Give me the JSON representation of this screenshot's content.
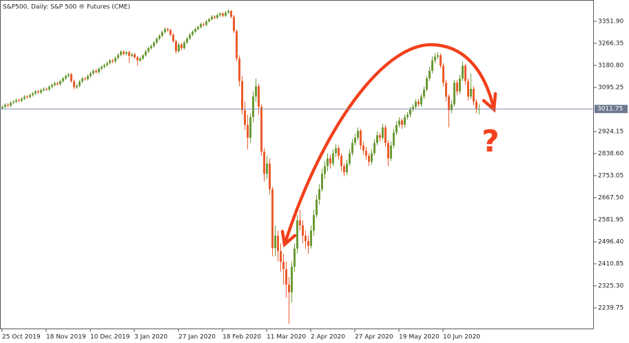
{
  "chart_data": {
    "type": "candlestick",
    "title": "S&P500, Daily:  S&P 500 ® Futures (CME)",
    "annotation": "?",
    "up_color": "#6a9a34",
    "down_color": "#ec5a2a",
    "ylim": [
      2156.9,
      3434.8
    ],
    "yticks": [
      {
        "value": 3351.9,
        "label": "3351.90"
      },
      {
        "value": 3266.35,
        "label": "3266.35"
      },
      {
        "value": 3180.8,
        "label": "3180.80"
      },
      {
        "value": 3095.25,
        "label": "3095.25"
      },
      {
        "value": 2924.15,
        "label": "2924.15"
      },
      {
        "value": 2838.6,
        "label": "2838.60"
      },
      {
        "value": 2753.05,
        "label": "2753.05"
      },
      {
        "value": 2667.5,
        "label": "2667.50"
      },
      {
        "value": 2581.95,
        "label": "2581.95"
      },
      {
        "value": 2496.4,
        "label": "2496.40"
      },
      {
        "value": 2410.85,
        "label": "2410.85"
      },
      {
        "value": 2325.3,
        "label": "2325.30"
      },
      {
        "value": 2239.75,
        "label": "2239.75"
      }
    ],
    "last_price": 3011.75,
    "categories": [
      "25 Oct 2019",
      null,
      null,
      null,
      null,
      null,
      null,
      null,
      null,
      null,
      null,
      null,
      null,
      null,
      null,
      null,
      "18 Nov 2019",
      null,
      null,
      null,
      null,
      null,
      null,
      null,
      null,
      null,
      null,
      null,
      null,
      null,
      null,
      null,
      "10 Dec 2019",
      null,
      null,
      null,
      null,
      null,
      null,
      null,
      null,
      null,
      null,
      null,
      null,
      null,
      null,
      null,
      "3 Jan 2020",
      null,
      null,
      null,
      null,
      null,
      null,
      null,
      null,
      null,
      null,
      null,
      null,
      null,
      null,
      null,
      "27 Jan 2020",
      null,
      null,
      null,
      null,
      null,
      null,
      null,
      null,
      null,
      null,
      null,
      null,
      null,
      null,
      null,
      "18 Feb 2020",
      null,
      null,
      null,
      null,
      null,
      null,
      null,
      null,
      null,
      null,
      null,
      null,
      null,
      null,
      null,
      "11 Mar 2020",
      null,
      null,
      null,
      null,
      null,
      null,
      null,
      null,
      null,
      null,
      null,
      null,
      null,
      null,
      null,
      "2 Apr 2020",
      null,
      null,
      null,
      null,
      null,
      null,
      null,
      null,
      null,
      null,
      null,
      null,
      null,
      null,
      null,
      "27 Apr 2020",
      null,
      null,
      null,
      null,
      null,
      null,
      null,
      null,
      null,
      null,
      null,
      null,
      null,
      null,
      null,
      "19 May 2020",
      null,
      null,
      null,
      null,
      null,
      null,
      null,
      null,
      null,
      null,
      null,
      null,
      null,
      null,
      null,
      "10 Jun 2020",
      null,
      null,
      null,
      null,
      null,
      null,
      null,
      null,
      null,
      null,
      null,
      null,
      null
    ],
    "ohlc": [
      [
        3015,
        3026,
        3009,
        3020
      ],
      [
        3020,
        3034,
        3014,
        3028
      ],
      [
        3028,
        3034,
        3019,
        3025
      ],
      [
        3025,
        3042,
        3019,
        3036
      ],
      [
        3036,
        3046,
        3030,
        3040
      ],
      [
        3040,
        3052,
        3034,
        3046
      ],
      [
        3046,
        3052,
        3038,
        3044
      ],
      [
        3044,
        3058,
        3038,
        3052
      ],
      [
        3052,
        3066,
        3046,
        3060
      ],
      [
        3060,
        3066,
        3052,
        3058
      ],
      [
        3058,
        3072,
        3052,
        3066
      ],
      [
        3066,
        3078,
        3060,
        3072
      ],
      [
        3072,
        3086,
        3066,
        3080
      ],
      [
        3080,
        3086,
        3070,
        3076
      ],
      [
        3076,
        3091,
        3070,
        3085
      ],
      [
        3085,
        3096,
        3079,
        3090
      ],
      [
        3090,
        3096,
        3082,
        3088
      ],
      [
        3088,
        3104,
        3082,
        3098
      ],
      [
        3098,
        3111,
        3092,
        3105
      ],
      [
        3105,
        3118,
        3099,
        3112
      ],
      [
        3112,
        3118,
        3102,
        3108
      ],
      [
        3108,
        3126,
        3102,
        3120
      ],
      [
        3120,
        3136,
        3114,
        3130
      ],
      [
        3130,
        3146,
        3124,
        3140
      ],
      [
        3140,
        3152,
        3134,
        3146
      ],
      [
        3146,
        3152,
        3114,
        3120
      ],
      [
        3120,
        3126,
        3088,
        3096
      ],
      [
        3096,
        3110,
        3090,
        3102
      ],
      [
        3102,
        3124,
        3096,
        3118
      ],
      [
        3118,
        3136,
        3112,
        3130
      ],
      [
        3130,
        3136,
        3122,
        3128
      ],
      [
        3128,
        3146,
        3122,
        3140
      ],
      [
        3140,
        3156,
        3134,
        3150
      ],
      [
        3150,
        3166,
        3144,
        3160
      ],
      [
        3160,
        3166,
        3149,
        3155
      ],
      [
        3155,
        3174,
        3149,
        3168
      ],
      [
        3168,
        3181,
        3162,
        3175
      ],
      [
        3175,
        3188,
        3169,
        3182
      ],
      [
        3182,
        3196,
        3176,
        3190
      ],
      [
        3190,
        3206,
        3184,
        3200
      ],
      [
        3200,
        3206,
        3190,
        3196
      ],
      [
        3196,
        3216,
        3190,
        3210
      ],
      [
        3210,
        3228,
        3204,
        3222
      ],
      [
        3222,
        3240,
        3216,
        3234
      ],
      [
        3234,
        3240,
        3220,
        3226
      ],
      [
        3226,
        3238,
        3220,
        3232
      ],
      [
        3232,
        3238,
        3190,
        3218
      ],
      [
        3218,
        3230,
        3212,
        3224
      ],
      [
        3224,
        3230,
        3206,
        3212
      ],
      [
        3212,
        3218,
        3180,
        3200
      ],
      [
        3200,
        3214,
        3194,
        3208
      ],
      [
        3208,
        3226,
        3202,
        3220
      ],
      [
        3220,
        3241,
        3214,
        3235
      ],
      [
        3235,
        3254,
        3229,
        3248
      ],
      [
        3248,
        3262,
        3242,
        3256
      ],
      [
        3256,
        3276,
        3250,
        3270
      ],
      [
        3270,
        3290,
        3264,
        3284
      ],
      [
        3284,
        3302,
        3278,
        3296
      ],
      [
        3296,
        3316,
        3290,
        3310
      ],
      [
        3310,
        3328,
        3304,
        3322
      ],
      [
        3322,
        3328,
        3312,
        3318
      ],
      [
        3318,
        3324,
        3294,
        3300
      ],
      [
        3300,
        3306,
        3269,
        3275
      ],
      [
        3275,
        3281,
        3226,
        3236
      ],
      [
        3236,
        3268,
        3230,
        3262
      ],
      [
        3262,
        3268,
        3240,
        3248
      ],
      [
        3248,
        3276,
        3242,
        3270
      ],
      [
        3270,
        3291,
        3264,
        3285
      ],
      [
        3285,
        3306,
        3279,
        3300
      ],
      [
        3300,
        3318,
        3294,
        3312
      ],
      [
        3312,
        3328,
        3306,
        3322
      ],
      [
        3322,
        3336,
        3316,
        3330
      ],
      [
        3330,
        3347,
        3324,
        3341
      ],
      [
        3341,
        3347,
        3332,
        3338
      ],
      [
        3338,
        3358,
        3332,
        3352
      ],
      [
        3352,
        3366,
        3346,
        3360
      ],
      [
        3360,
        3376,
        3354,
        3370
      ],
      [
        3370,
        3376,
        3360,
        3366
      ],
      [
        3366,
        3382,
        3360,
        3376
      ],
      [
        3376,
        3388,
        3370,
        3382
      ],
      [
        3382,
        3388,
        3368,
        3374
      ],
      [
        3374,
        3392,
        3368,
        3386
      ],
      [
        3386,
        3398,
        3380,
        3392
      ],
      [
        3392,
        3396,
        3364,
        3370
      ],
      [
        3370,
        3376,
        3306,
        3314
      ],
      [
        3314,
        3320,
        3196,
        3208
      ],
      [
        3208,
        3220,
        3100,
        3120
      ],
      [
        3120,
        3140,
        2990,
        3007
      ],
      [
        3007,
        3040,
        2930,
        2950
      ],
      [
        2950,
        2990,
        2855,
        2900
      ],
      [
        2900,
        2995,
        2880,
        2980
      ],
      [
        2980,
        3080,
        2960,
        3060
      ],
      [
        3060,
        3130,
        3040,
        3100
      ],
      [
        3100,
        3110,
        2990,
        3020
      ],
      [
        3020,
        3030,
        2830,
        2846
      ],
      [
        2846,
        2860,
        2730,
        2760
      ],
      [
        2760,
        2830,
        2740,
        2800
      ],
      [
        2800,
        2820,
        2680,
        2700
      ],
      [
        2700,
        2710,
        2440,
        2472
      ],
      [
        2472,
        2560,
        2440,
        2520
      ],
      [
        2520,
        2540,
        2420,
        2460
      ],
      [
        2460,
        2490,
        2380,
        2419
      ],
      [
        2419,
        2450,
        2330,
        2390
      ],
      [
        2390,
        2420,
        2280,
        2330
      ],
      [
        2330,
        2360,
        2178,
        2300
      ],
      [
        2300,
        2420,
        2260,
        2400
      ],
      [
        2400,
        2490,
        2380,
        2470
      ],
      [
        2470,
        2600,
        2450,
        2579
      ],
      [
        2579,
        2620,
        2540,
        2560
      ],
      [
        2560,
        2580,
        2490,
        2520
      ],
      [
        2520,
        2540,
        2470,
        2499
      ],
      [
        2499,
        2520,
        2450,
        2480
      ],
      [
        2480,
        2560,
        2470,
        2540
      ],
      [
        2540,
        2620,
        2520,
        2600
      ],
      [
        2600,
        2680,
        2590,
        2660
      ],
      [
        2660,
        2720,
        2640,
        2700
      ],
      [
        2700,
        2780,
        2690,
        2760
      ],
      [
        2760,
        2810,
        2740,
        2790
      ],
      [
        2790,
        2840,
        2770,
        2820
      ],
      [
        2820,
        2835,
        2780,
        2800
      ],
      [
        2800,
        2855,
        2790,
        2840
      ],
      [
        2840,
        2875,
        2825,
        2860
      ],
      [
        2860,
        2870,
        2815,
        2830
      ],
      [
        2830,
        2840,
        2770,
        2790
      ],
      [
        2790,
        2800,
        2750,
        2766
      ],
      [
        2766,
        2815,
        2755,
        2800
      ],
      [
        2800,
        2855,
        2790,
        2840
      ],
      [
        2840,
        2895,
        2830,
        2880
      ],
      [
        2880,
        2915,
        2870,
        2900
      ],
      [
        2900,
        2940,
        2890,
        2927
      ],
      [
        2927,
        2935,
        2855,
        2870
      ],
      [
        2870,
        2885,
        2835,
        2850
      ],
      [
        2850,
        2865,
        2815,
        2830
      ],
      [
        2830,
        2840,
        2790,
        2807
      ],
      [
        2807,
        2855,
        2795,
        2840
      ],
      [
        2840,
        2895,
        2830,
        2880
      ],
      [
        2880,
        2925,
        2870,
        2910
      ],
      [
        2910,
        2920,
        2885,
        2900
      ],
      [
        2900,
        2955,
        2890,
        2940
      ],
      [
        2940,
        2950,
        2865,
        2880
      ],
      [
        2880,
        2890,
        2790,
        2820
      ],
      [
        2820,
        2885,
        2810,
        2870
      ],
      [
        2870,
        2935,
        2860,
        2920
      ],
      [
        2920,
        2965,
        2910,
        2950
      ],
      [
        2950,
        2980,
        2940,
        2967
      ],
      [
        2967,
        2975,
        2935,
        2950
      ],
      [
        2950,
        2990,
        2940,
        2980
      ],
      [
        2980,
        3000,
        2970,
        2990
      ],
      [
        2990,
        3020,
        2980,
        3010
      ],
      [
        3010,
        3030,
        3000,
        3020
      ],
      [
        3020,
        3050,
        3010,
        3040
      ],
      [
        3040,
        3050,
        3020,
        3030
      ],
      [
        3030,
        3070,
        3020,
        3060
      ],
      [
        3060,
        3100,
        3050,
        3087
      ],
      [
        3087,
        3140,
        3080,
        3130
      ],
      [
        3130,
        3175,
        3120,
        3160
      ],
      [
        3160,
        3215,
        3150,
        3200
      ],
      [
        3200,
        3228,
        3190,
        3215
      ],
      [
        3215,
        3232,
        3205,
        3220
      ],
      [
        3220,
        3228,
        3170,
        3180
      ],
      [
        3180,
        3190,
        3100,
        3114
      ],
      [
        3114,
        3125,
        3040,
        3060
      ],
      [
        3060,
        3070,
        2940,
        3007
      ],
      [
        3007,
        3045,
        2995,
        3030
      ],
      [
        3030,
        3125,
        3020,
        3114
      ],
      [
        3114,
        3125,
        3065,
        3080
      ],
      [
        3080,
        3145,
        3070,
        3130
      ],
      [
        3130,
        3195,
        3120,
        3180
      ],
      [
        3180,
        3188,
        3105,
        3120
      ],
      [
        3120,
        3130,
        3045,
        3060
      ],
      [
        3060,
        3150,
        3050,
        3090
      ],
      [
        3090,
        3100,
        3025,
        3040
      ],
      [
        3040,
        3050,
        2995,
        3010
      ],
      [
        3010,
        3030,
        2990,
        3011.75
      ]
    ]
  }
}
